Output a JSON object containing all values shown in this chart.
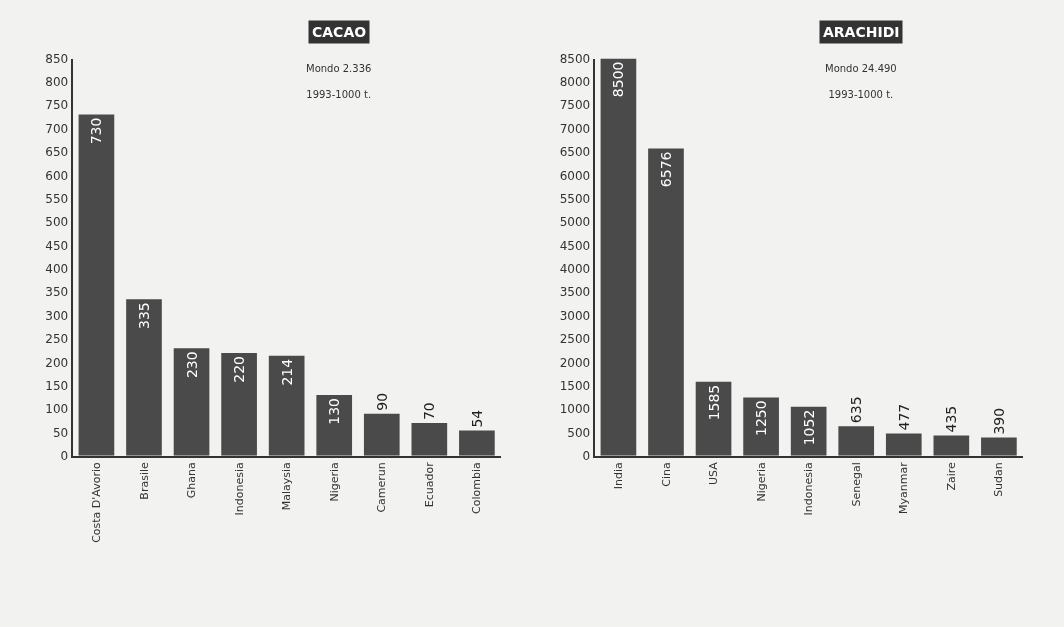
{
  "chart_data": [
    {
      "type": "bar",
      "title": "CACAO",
      "subtitle": "Mondo 2.336\n1993-1000 t.",
      "categories": [
        "Costa D'Avorio",
        "Brasile",
        "Ghana",
        "Indonesia",
        "Malaysia",
        "Nigeria",
        "Camerun",
        "Ecuador",
        "Colombia"
      ],
      "values": [
        730,
        335,
        230,
        220,
        214,
        130,
        90,
        70,
        54
      ],
      "color": "#4a4a4a",
      "ylim": [
        0,
        850
      ],
      "yticks": [
        0,
        50,
        100,
        150,
        200,
        250,
        300,
        350,
        400,
        450,
        500,
        550,
        600,
        650,
        700,
        750,
        800,
        850
      ],
      "data_labels": true
    },
    {
      "type": "bar",
      "title": "ARACHIDI",
      "subtitle": "Mondo 24.490\n1993-1000 t.",
      "categories": [
        "India",
        "Cina",
        "USA",
        "Nigeria",
        "Indonesia",
        "Senegal",
        "Myanmar",
        "Zaire",
        "Sudan"
      ],
      "values": [
        8500,
        6576,
        1585,
        1250,
        1052,
        635,
        477,
        435,
        390
      ],
      "color": "#4a4a4a",
      "ylim": [
        0,
        8500
      ],
      "yticks": [
        0,
        500,
        1000,
        1500,
        2000,
        2500,
        3000,
        3500,
        4000,
        4500,
        5000,
        5500,
        6000,
        6500,
        7000,
        7500,
        8000,
        8500
      ],
      "data_labels": true
    }
  ]
}
